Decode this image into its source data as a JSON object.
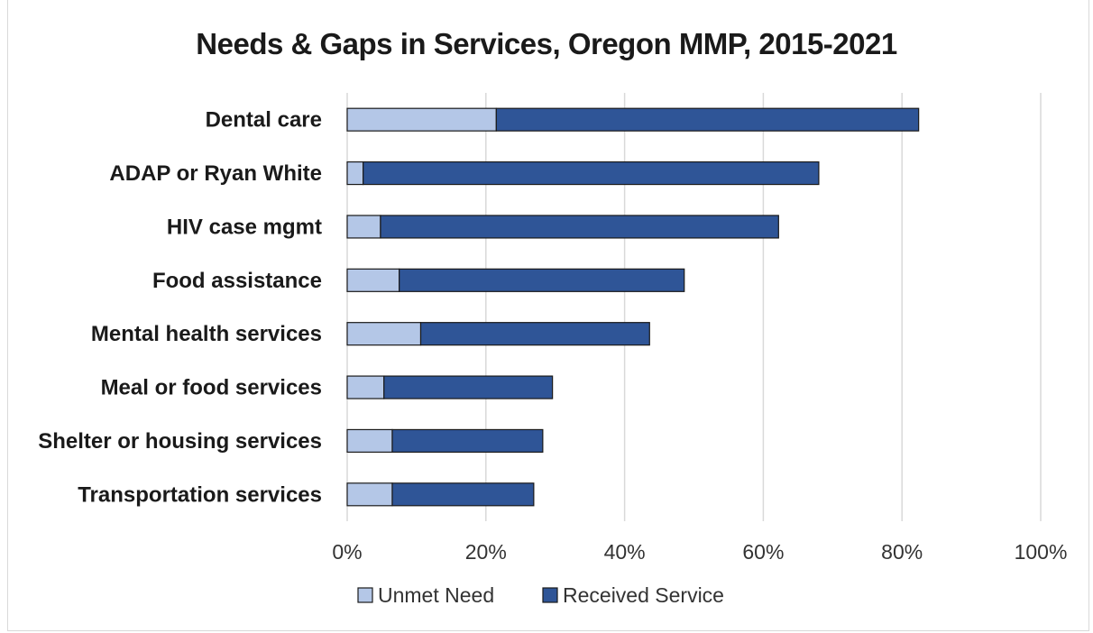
{
  "chart_data": {
    "type": "bar",
    "orientation": "horizontal",
    "stacked": true,
    "title": "Needs & Gaps in Services, Oregon MMP, 2015-2021",
    "categories": [
      "Dental care",
      "ADAP or Ryan White",
      "HIV case mgmt",
      "Food assistance",
      "Mental health services",
      "Meal or food services",
      "Shelter or housing services",
      "Transportation services"
    ],
    "series": [
      {
        "name": "Unmet Need",
        "color": "#b4c7e7",
        "values": [
          21.5,
          2.3,
          4.8,
          7.5,
          10.6,
          5.3,
          6.5,
          6.5
        ]
      },
      {
        "name": "Received Service",
        "color": "#2f5597",
        "values": [
          60.9,
          65.7,
          57.4,
          41.1,
          33.0,
          24.3,
          21.7,
          20.4
        ]
      }
    ],
    "xlim": [
      0,
      100
    ],
    "x_ticks": [
      "0%",
      "20%",
      "40%",
      "60%",
      "80%",
      "100%"
    ],
    "x_tick_values": [
      0,
      20,
      40,
      60,
      80,
      100
    ],
    "grid": true,
    "legend_position": "bottom"
  }
}
